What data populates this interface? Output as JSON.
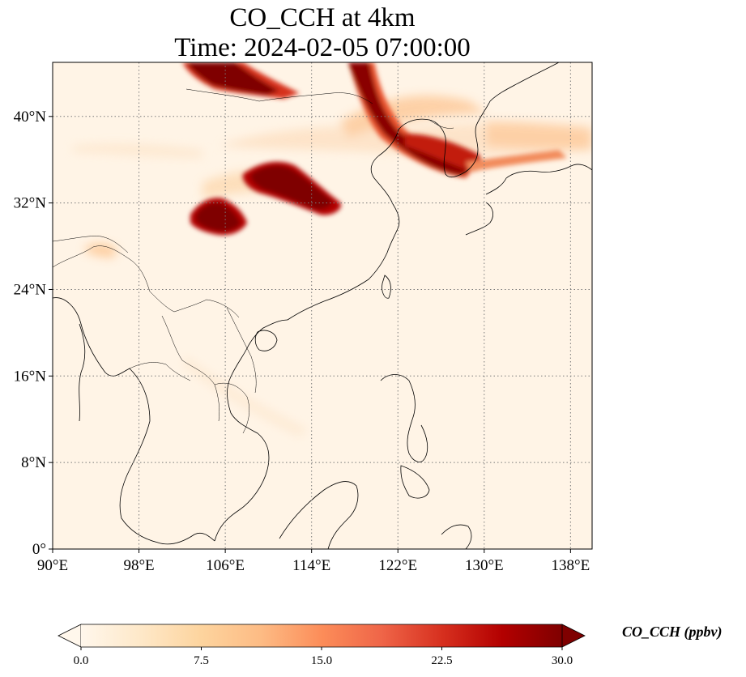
{
  "title": {
    "line1": "CO_CCH at 4km",
    "line2": "Time: 2024-02-05 07:00:00"
  },
  "map": {
    "lon_range": [
      90,
      140
    ],
    "lat_range": [
      0,
      45
    ],
    "lon_ticks": [
      {
        "value": 90,
        "label": "90°E"
      },
      {
        "value": 98,
        "label": "98°E"
      },
      {
        "value": 106,
        "label": "106°E"
      },
      {
        "value": 114,
        "label": "114°E"
      },
      {
        "value": 122,
        "label": "122°E"
      },
      {
        "value": 130,
        "label": "130°E"
      },
      {
        "value": 138,
        "label": "138°E"
      }
    ],
    "lat_ticks": [
      {
        "value": 0,
        "label": "0°"
      },
      {
        "value": 8,
        "label": "8°N"
      },
      {
        "value": 16,
        "label": "16°N"
      },
      {
        "value": 24,
        "label": "24°N"
      },
      {
        "value": 32,
        "label": "32°N"
      },
      {
        "value": 40,
        "label": "40°N"
      }
    ],
    "gridlines": true,
    "colormap": "OrRd"
  },
  "colorbar": {
    "label": "CO_CCH (ppbv)",
    "min": 0.0,
    "max": 30.0,
    "extend": "both",
    "ticks": [
      "0.0",
      "7.5",
      "15.0",
      "22.5",
      "30.0"
    ],
    "colors": [
      "#fff7ec",
      "#fee8c8",
      "#fdd49e",
      "#fdbb84",
      "#fc8d59",
      "#ef6548",
      "#d7301f",
      "#b30000",
      "#7f0000"
    ]
  }
}
